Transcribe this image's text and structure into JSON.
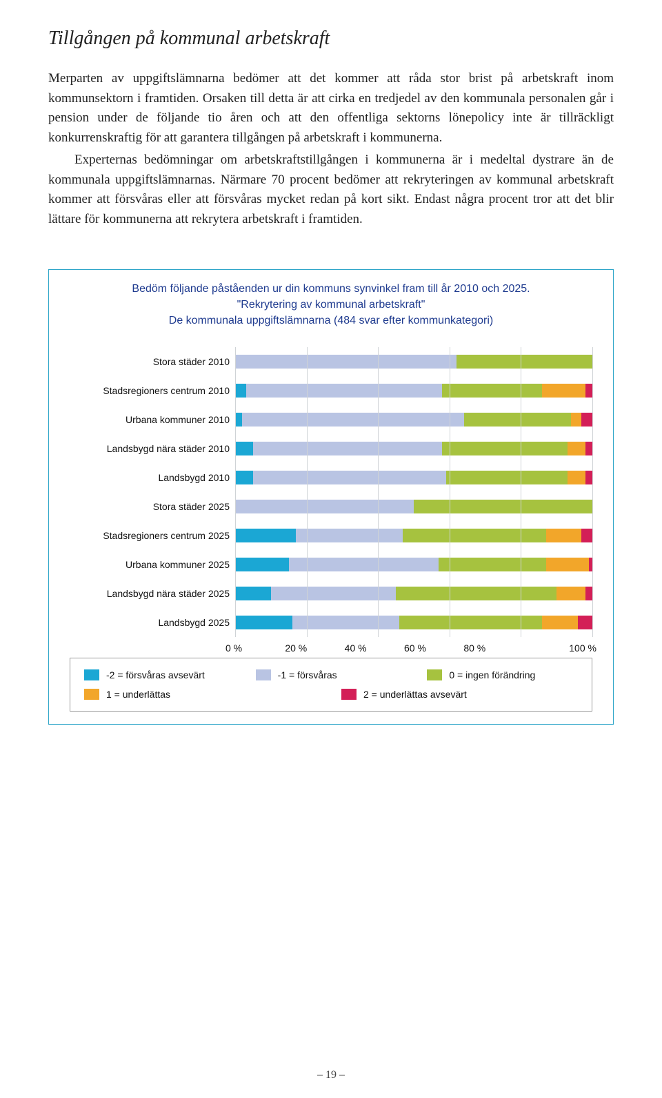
{
  "heading": "Tillgången på kommunal arbetskraft",
  "para1": "Merparten av uppgiftslämnarna bedömer att det kommer att råda stor brist på arbetskraft inom kommunsektorn i framtiden. Orsaken till detta är att cirka en tredjedel av den kommunala personalen går i pension under de följande tio åren och att den offentliga sektorns lönepolicy inte är tillräckligt konkurrenskraftig för att garantera tillgången på arbetskraft i kommunerna.",
  "para2": "Experternas bedömningar om arbetskraftstillgången i kommunerna är i medeltal dystrare än de kommunala uppgiftslämnarnas. Närmare 70 procent bedömer att rekryteringen av kommunal arbetskraft kommer att försvåras eller att försvåras mycket redan på kort sikt. Endast några procent tror att det blir lättare för kommunerna att rekrytera arbetskraft i framtiden.",
  "chart": {
    "type": "stacked-horizontal-bar",
    "title_line1": "Bedöm följande påståenden ur din kommuns synvinkel fram till år 2010 och 2025.",
    "title_line2": "\"Rekrytering av kommunal arbetskraft\"",
    "title_line3": "De kommunala uppgiftslämnarna (484 svar efter kommunkategori)",
    "categories": [
      "Stora städer 2010",
      "Stadsregioners centrum 2010",
      "Urbana kommuner 2010",
      "Landsbygd nära städer 2010",
      "Landsbygd 2010",
      "Stora städer 2025",
      "Stadsregioners centrum 2025",
      "Urbana kommuner 2025",
      "Landsbygd nära städer 2025",
      "Landsbygd 2025"
    ],
    "series_colors": [
      "#1ba7d4",
      "#b9c4e3",
      "#a6c23f",
      "#f2a62a",
      "#d31f57"
    ],
    "segments": [
      [
        0,
        62,
        38,
        0,
        0
      ],
      [
        3,
        55,
        28,
        12,
        2
      ],
      [
        2,
        62,
        30,
        3,
        3
      ],
      [
        5,
        53,
        35,
        5,
        2
      ],
      [
        5,
        54,
        34,
        5,
        2
      ],
      [
        0,
        50,
        50,
        0,
        0
      ],
      [
        17,
        30,
        40,
        10,
        3
      ],
      [
        15,
        42,
        30,
        12,
        1
      ],
      [
        10,
        35,
        45,
        8,
        2
      ],
      [
        16,
        30,
        40,
        10,
        4
      ]
    ],
    "x_ticks": [
      "0 %",
      "20 %",
      "40 %",
      "60 %",
      "80 %",
      "100 %"
    ],
    "grid_color": "#cfd3d6",
    "background_color": "#ffffff"
  },
  "legend": {
    "items": [
      {
        "color": "#1ba7d4",
        "label": "-2 = försvåras avsevärt"
      },
      {
        "color": "#b9c4e3",
        "label": "-1 = försvåras"
      },
      {
        "color": "#a6c23f",
        "label": "0 = ingen förändring"
      },
      {
        "color": "#f2a62a",
        "label": "1 = underlättas"
      },
      {
        "color": "#d31f57",
        "label": "2 = underlättas avsevärt"
      }
    ]
  },
  "page_number": "– 19 –"
}
